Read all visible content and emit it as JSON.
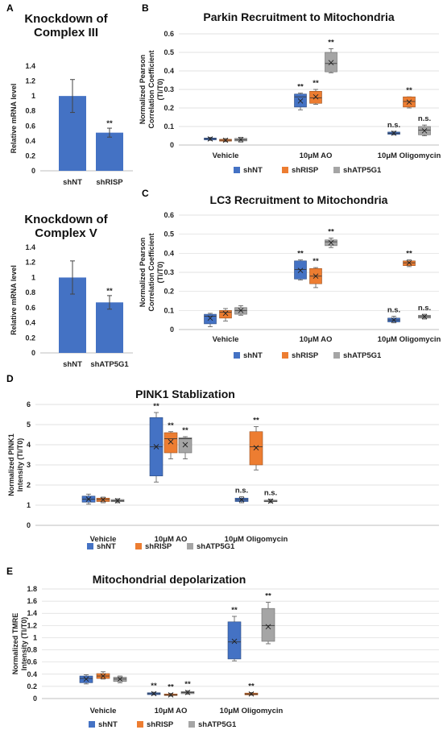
{
  "colors": {
    "shNT": "#4472c4",
    "shRISP": "#ed7d31",
    "shATP5G1": "#a5a5a5",
    "error_bar": "#444444",
    "grid": "#d9d9d9"
  },
  "chart_data": [
    {
      "id": "A1",
      "panel_label": "A",
      "type": "bar",
      "title": "Knockdown of Complex III",
      "title_lines": [
        "Knockdown of",
        "Complex III"
      ],
      "ylabel": "Relative mRNA level",
      "ylim": [
        0,
        1.4
      ],
      "yticks": [
        "0",
        "0.2",
        "0.4",
        "0.6",
        "0.8",
        "1",
        "1.2",
        "1.4"
      ],
      "categories": [
        "shNT",
        "shRISP"
      ],
      "values": [
        1.0,
        0.51
      ],
      "errors": [
        0.22,
        0.06
      ],
      "annotations": [
        "",
        "**"
      ]
    },
    {
      "id": "A2",
      "panel_label": "",
      "type": "bar",
      "title": "Knockdown of Complex V",
      "title_lines": [
        "Knockdown of",
        "Complex V"
      ],
      "ylabel": "Relative mRNA level",
      "ylim": [
        0,
        1.4
      ],
      "yticks": [
        "0",
        "0.2",
        "0.4",
        "0.6",
        "0.8",
        "1",
        "1.2",
        "1.4"
      ],
      "categories": [
        "shNT",
        "shATP5G1"
      ],
      "values": [
        1.0,
        0.67
      ],
      "errors": [
        0.22,
        0.09
      ],
      "annotations": [
        "",
        "**"
      ]
    },
    {
      "id": "B",
      "panel_label": "B",
      "type": "box",
      "title": "Parkin Recruitment to Mitochondria",
      "ylabel_lines": [
        "Normalized Pearson",
        "Correlation Coefficient",
        "(Tl/T0)"
      ],
      "ylim": [
        0,
        0.6
      ],
      "yticks": [
        "0",
        "0.1",
        "0.2",
        "0.3",
        "0.4",
        "0.5",
        "0.6"
      ],
      "categories": [
        "Vehicle",
        "10μM AO",
        "10μM Oligomycin"
      ],
      "legend": [
        "shNT",
        "shRISP",
        "shATP5G1"
      ],
      "groups": [
        [
          {
            "series": "shNT",
            "min": 0.025,
            "q1": 0.028,
            "median": 0.034,
            "q3": 0.038,
            "max": 0.042,
            "mean": 0.033,
            "ann": ""
          },
          {
            "series": "shRISP",
            "min": 0.018,
            "q1": 0.021,
            "median": 0.026,
            "q3": 0.031,
            "max": 0.035,
            "mean": 0.026,
            "ann": ""
          },
          {
            "series": "shATP5G1",
            "min": 0.016,
            "q1": 0.022,
            "median": 0.028,
            "q3": 0.036,
            "max": 0.042,
            "mean": 0.029,
            "ann": ""
          }
        ],
        [
          {
            "series": "shNT",
            "min": 0.19,
            "q1": 0.205,
            "median": 0.26,
            "q3": 0.275,
            "max": 0.28,
            "mean": 0.238,
            "ann": "**"
          },
          {
            "series": "shRISP",
            "min": 0.22,
            "q1": 0.225,
            "median": 0.255,
            "q3": 0.29,
            "max": 0.3,
            "mean": 0.26,
            "ann": "**"
          },
          {
            "series": "shATP5G1",
            "min": 0.39,
            "q1": 0.395,
            "median": 0.44,
            "q3": 0.5,
            "max": 0.52,
            "mean": 0.445,
            "ann": "**"
          }
        ],
        [
          {
            "series": "shNT",
            "min": 0.055,
            "q1": 0.058,
            "median": 0.064,
            "q3": 0.07,
            "max": 0.074,
            "mean": 0.064,
            "ann": "n.s."
          },
          {
            "series": "shRISP",
            "min": 0.2,
            "q1": 0.205,
            "median": 0.235,
            "q3": 0.26,
            "max": 0.26,
            "mean": 0.232,
            "ann": "**"
          },
          {
            "series": "shATP5G1",
            "min": 0.05,
            "q1": 0.055,
            "median": 0.08,
            "q3": 0.1,
            "max": 0.108,
            "mean": 0.077,
            "ann": "n.s."
          }
        ]
      ]
    },
    {
      "id": "C",
      "panel_label": "C",
      "type": "box",
      "title": "LC3 Recruitment to Mitochondria",
      "ylabel_lines": [
        "Normalized Pearson",
        "Correlation Coefficient",
        "(Tl/T0)"
      ],
      "ylim": [
        0,
        0.6
      ],
      "yticks": [
        "0",
        "0.1",
        "0.2",
        "0.3",
        "0.4",
        "0.5",
        "0.6"
      ],
      "categories": [
        "Vehicle",
        "10μM AO",
        "10μM Oligomycin"
      ],
      "legend": [
        "shNT",
        "shRISP",
        "shATP5G1"
      ],
      "groups": [
        [
          {
            "series": "shNT",
            "min": 0.015,
            "q1": 0.03,
            "median": 0.07,
            "q3": 0.08,
            "max": 0.085,
            "mean": 0.06,
            "ann": ""
          },
          {
            "series": "shRISP",
            "min": 0.045,
            "q1": 0.06,
            "median": 0.09,
            "q3": 0.1,
            "max": 0.11,
            "mean": 0.085,
            "ann": ""
          },
          {
            "series": "shATP5G1",
            "min": 0.075,
            "q1": 0.08,
            "median": 0.1,
            "q3": 0.115,
            "max": 0.125,
            "mean": 0.1,
            "ann": ""
          }
        ],
        [
          {
            "series": "shNT",
            "min": 0.26,
            "q1": 0.265,
            "median": 0.315,
            "q3": 0.36,
            "max": 0.365,
            "mean": 0.31,
            "ann": "**"
          },
          {
            "series": "shRISP",
            "min": 0.22,
            "q1": 0.24,
            "median": 0.28,
            "q3": 0.32,
            "max": 0.325,
            "mean": 0.28,
            "ann": "**"
          },
          {
            "series": "shATP5G1",
            "min": 0.43,
            "q1": 0.44,
            "median": 0.46,
            "q3": 0.47,
            "max": 0.48,
            "mean": 0.455,
            "ann": "**"
          }
        ],
        [
          {
            "series": "shNT",
            "min": 0.035,
            "q1": 0.04,
            "median": 0.05,
            "q3": 0.06,
            "max": 0.07,
            "mean": 0.05,
            "ann": "n.s."
          },
          {
            "series": "shRISP",
            "min": 0.33,
            "q1": 0.335,
            "median": 0.35,
            "q3": 0.36,
            "max": 0.365,
            "mean": 0.35,
            "ann": "**"
          },
          {
            "series": "shATP5G1",
            "min": 0.055,
            "q1": 0.06,
            "median": 0.068,
            "q3": 0.075,
            "max": 0.08,
            "mean": 0.068,
            "ann": "n.s."
          }
        ]
      ]
    },
    {
      "id": "D",
      "panel_label": "D",
      "type": "box",
      "title": "PINK1 Stablization",
      "ylabel_lines": [
        "Normalized PINK1",
        "Intensity (Tl/T0)"
      ],
      "ylim": [
        0,
        6
      ],
      "yticks": [
        "0",
        "1",
        "2",
        "3",
        "4",
        "5",
        "6"
      ],
      "categories": [
        "Vehicle",
        "10μM AO",
        "10μM Oligomycin"
      ],
      "legend": [
        "shNT",
        "shRISP",
        "shATP5G1"
      ],
      "groups": [
        [
          {
            "series": "shNT",
            "min": 1.05,
            "q1": 1.15,
            "median": 1.3,
            "q3": 1.45,
            "max": 1.55,
            "mean": 1.3,
            "ann": ""
          },
          {
            "series": "shRISP",
            "min": 1.12,
            "q1": 1.18,
            "median": 1.28,
            "q3": 1.35,
            "max": 1.4,
            "mean": 1.27,
            "ann": ""
          },
          {
            "series": "shATP5G1",
            "min": 1.12,
            "q1": 1.17,
            "median": 1.22,
            "q3": 1.28,
            "max": 1.32,
            "mean": 1.22,
            "ann": ""
          }
        ],
        [
          {
            "series": "shNT",
            "min": 2.15,
            "q1": 2.45,
            "median": 3.9,
            "q3": 5.35,
            "max": 5.6,
            "mean": 3.9,
            "ann": "**"
          },
          {
            "series": "shRISP",
            "min": 3.3,
            "q1": 3.6,
            "median": 4.3,
            "q3": 4.6,
            "max": 4.65,
            "mean": 4.15,
            "ann": "**"
          },
          {
            "series": "shATP5G1",
            "min": 3.3,
            "q1": 3.6,
            "median": 4.3,
            "q3": 4.35,
            "max": 4.4,
            "mean": 4.0,
            "ann": "**"
          }
        ],
        [
          {
            "series": "shNT",
            "min": 1.12,
            "q1": 1.18,
            "median": 1.27,
            "q3": 1.35,
            "max": 1.42,
            "mean": 1.27,
            "ann": "n.s."
          },
          {
            "series": "shRISP",
            "min": 2.75,
            "q1": 3.0,
            "median": 3.9,
            "q3": 4.65,
            "max": 4.9,
            "mean": 3.85,
            "ann": "**"
          },
          {
            "series": "shATP5G1",
            "min": 1.12,
            "q1": 1.17,
            "median": 1.2,
            "q3": 1.25,
            "max": 1.3,
            "mean": 1.2,
            "ann": "n.s."
          }
        ]
      ]
    },
    {
      "id": "E",
      "panel_label": "E",
      "type": "box",
      "title": "Mitochondrial depolarization",
      "ylabel_lines": [
        "Normalized TMRE",
        "Intensity (Tl/T0)"
      ],
      "ylim": [
        0,
        1.8
      ],
      "yticks": [
        "0",
        "0.2",
        "0.4",
        "0.6",
        "0.8",
        "1",
        "1.2",
        "1.4",
        "1.6",
        "1.8"
      ],
      "categories": [
        "Vehicle",
        "10μM AO",
        "10μM Oligomycin"
      ],
      "legend": [
        "shNT",
        "shRISP",
        "shATP5G1"
      ],
      "groups": [
        [
          {
            "series": "shNT",
            "min": 0.24,
            "q1": 0.26,
            "median": 0.33,
            "q3": 0.37,
            "max": 0.39,
            "mean": 0.32,
            "ann": ""
          },
          {
            "series": "shRISP",
            "min": 0.32,
            "q1": 0.33,
            "median": 0.37,
            "q3": 0.41,
            "max": 0.44,
            "mean": 0.37,
            "ann": ""
          },
          {
            "series": "shATP5G1",
            "min": 0.26,
            "q1": 0.28,
            "median": 0.32,
            "q3": 0.35,
            "max": 0.37,
            "mean": 0.32,
            "ann": ""
          }
        ],
        [
          {
            "series": "shNT",
            "min": 0.06,
            "q1": 0.065,
            "median": 0.08,
            "q3": 0.095,
            "max": 0.105,
            "mean": 0.08,
            "ann": "**"
          },
          {
            "series": "shRISP",
            "min": 0.04,
            "q1": 0.05,
            "median": 0.06,
            "q3": 0.075,
            "max": 0.085,
            "mean": 0.06,
            "ann": "**"
          },
          {
            "series": "shATP5G1",
            "min": 0.07,
            "q1": 0.08,
            "median": 0.1,
            "q3": 0.115,
            "max": 0.13,
            "mean": 0.1,
            "ann": "**"
          }
        ],
        [
          {
            "series": "shNT",
            "min": 0.62,
            "q1": 0.65,
            "median": 0.93,
            "q3": 1.26,
            "max": 1.35,
            "mean": 0.94,
            "ann": "**"
          },
          {
            "series": "shRISP",
            "min": 0.055,
            "q1": 0.06,
            "median": 0.075,
            "q3": 0.09,
            "max": 0.1,
            "mean": 0.075,
            "ann": "**"
          },
          {
            "series": "shATP5G1",
            "min": 0.9,
            "q1": 0.94,
            "median": 1.2,
            "q3": 1.48,
            "max": 1.58,
            "mean": 1.18,
            "ann": "**"
          }
        ]
      ]
    }
  ]
}
